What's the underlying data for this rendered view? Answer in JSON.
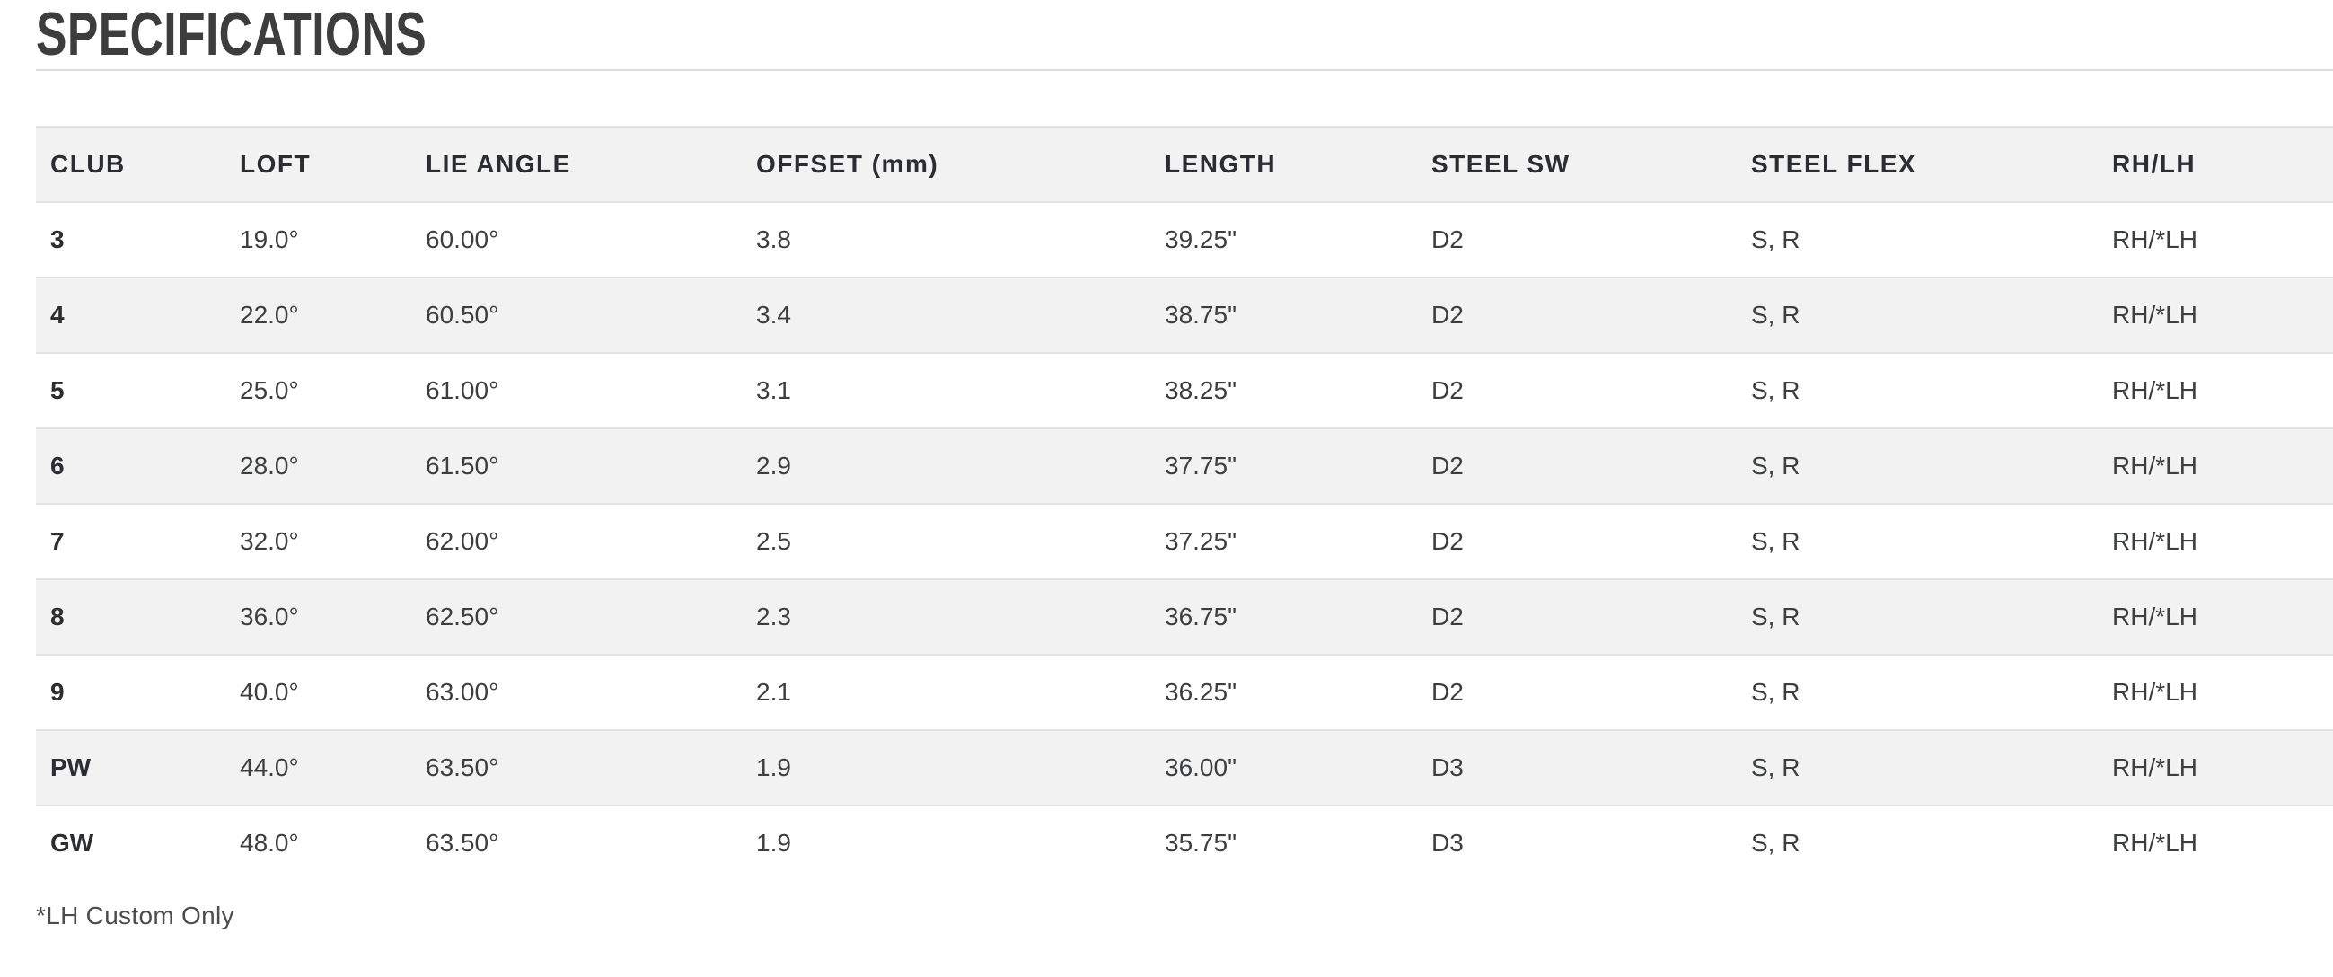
{
  "section": {
    "title": "SPECIFICATIONS",
    "footnote": "*LH Custom Only"
  },
  "table": {
    "columns": [
      "CLUB",
      "LOFT",
      "LIE ANGLE",
      "OFFSET (mm)",
      "LENGTH",
      "STEEL SW",
      "STEEL FLEX",
      "RH/LH"
    ],
    "rows": [
      [
        "3",
        "19.0°",
        "60.00°",
        "3.8",
        "39.25\"",
        "D2",
        "S, R",
        "RH/*LH"
      ],
      [
        "4",
        "22.0°",
        "60.50°",
        "3.4",
        "38.75\"",
        "D2",
        "S, R",
        "RH/*LH"
      ],
      [
        "5",
        "25.0°",
        "61.00°",
        "3.1",
        "38.25\"",
        "D2",
        "S, R",
        "RH/*LH"
      ],
      [
        "6",
        "28.0°",
        "61.50°",
        "2.9",
        "37.75\"",
        "D2",
        "S, R",
        "RH/*LH"
      ],
      [
        "7",
        "32.0°",
        "62.00°",
        "2.5",
        "37.25\"",
        "D2",
        "S, R",
        "RH/*LH"
      ],
      [
        "8",
        "36.0°",
        "62.50°",
        "2.3",
        "36.75\"",
        "D2",
        "S, R",
        "RH/*LH"
      ],
      [
        "9",
        "40.0°",
        "63.00°",
        "2.1",
        "36.25\"",
        "D2",
        "S, R",
        "RH/*LH"
      ],
      [
        "PW",
        "44.0°",
        "63.50°",
        "1.9",
        "36.00\"",
        "D3",
        "S, R",
        "RH/*LH"
      ],
      [
        "GW",
        "48.0°",
        "63.50°",
        "1.9",
        "35.75\"",
        "D3",
        "S, R",
        "RH/*LH"
      ]
    ]
  },
  "colors": {
    "row_stripe": "#f2f2f2",
    "row_border": "#e3e3e3",
    "divider": "#dcdcdc",
    "heading_text": "#3d3d3d",
    "header_text": "#2b2d30",
    "body_text": "#3c3e40",
    "footnote_text": "#4a4c4e"
  }
}
